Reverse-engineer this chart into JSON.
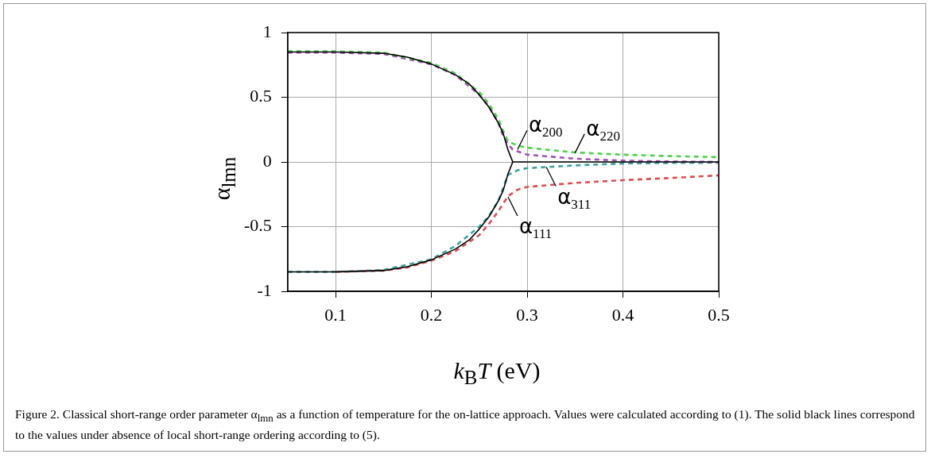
{
  "chart_data": {
    "type": "line",
    "xlabel": "k$_{B}$T (eV)",
    "ylabel": "α$_{lmn}$",
    "xlim": [
      0.05,
      0.5
    ],
    "xticks": [
      0.1,
      0.2,
      0.3,
      0.4,
      0.5
    ],
    "ylim": [
      -1,
      1
    ],
    "yticks": [
      -1,
      -0.5,
      0,
      0.5,
      1
    ],
    "grid": true,
    "legend": false,
    "marker": "none",
    "series": [
      {
        "color": "#000000",
        "line_style": "solid",
        "x": [
          0.05,
          0.1,
          0.15,
          0.175,
          0.2,
          0.225,
          0.24,
          0.25,
          0.26,
          0.27,
          0.275,
          0.28,
          0.285,
          0.3,
          0.4,
          0.5
        ],
        "values": [
          0.85,
          0.85,
          0.84,
          0.81,
          0.757,
          0.674,
          0.6,
          0.519,
          0.425,
          0.3,
          0.22,
          0.093,
          0,
          0,
          0,
          0
        ]
      },
      {
        "color": "#000000",
        "line_style": "solid",
        "x": [
          0.05,
          0.1,
          0.15,
          0.175,
          0.2,
          0.225,
          0.24,
          0.25,
          0.26,
          0.27,
          0.275,
          0.28,
          0.285
        ],
        "values": [
          -0.85,
          -0.85,
          -0.84,
          -0.81,
          -0.757,
          -0.674,
          -0.6,
          -0.519,
          -0.425,
          -0.3,
          -0.22,
          -0.093,
          0
        ]
      },
      {
        "color": "#50d050",
        "line_style": "dashed",
        "x": [
          0.05,
          0.1,
          0.15,
          0.2,
          0.225,
          0.25,
          0.26,
          0.27,
          0.275,
          0.28,
          0.29,
          0.3,
          0.35,
          0.4,
          0.45,
          0.5
        ],
        "values": [
          0.855,
          0.855,
          0.845,
          0.765,
          0.685,
          0.54,
          0.45,
          0.33,
          0.24,
          0.16,
          0.125,
          0.11,
          0.073,
          0.056,
          0.045,
          0.037
        ]
      },
      {
        "color": "#a050b0",
        "line_style": "dashed",
        "x": [
          0.05,
          0.1,
          0.15,
          0.2,
          0.225,
          0.25,
          0.26,
          0.27,
          0.275,
          0.28,
          0.285,
          0.3,
          0.35,
          0.4,
          0.45,
          0.5
        ],
        "values": [
          0.845,
          0.845,
          0.835,
          0.755,
          0.672,
          0.52,
          0.43,
          0.3,
          0.2,
          0.14,
          0.095,
          0.056,
          0.025,
          0.01,
          0.003,
          0
        ]
      },
      {
        "color": "#40a0a0",
        "line_style": "dashed",
        "x": [
          0.05,
          0.1,
          0.15,
          0.2,
          0.225,
          0.25,
          0.26,
          0.27,
          0.275,
          0.28,
          0.29,
          0.3,
          0.35,
          0.4,
          0.45,
          0.5
        ],
        "values": [
          -0.85,
          -0.85,
          -0.835,
          -0.753,
          -0.65,
          -0.5,
          -0.42,
          -0.3,
          -0.2,
          -0.1,
          -0.065,
          -0.048,
          -0.027,
          -0.012,
          -0.008,
          -0.006
        ]
      },
      {
        "color": "#d85050",
        "line_style": "dashed",
        "x": [
          0.1,
          0.15,
          0.175,
          0.2,
          0.225,
          0.25,
          0.26,
          0.27,
          0.28,
          0.29,
          0.3,
          0.35,
          0.4,
          0.45,
          0.5
        ],
        "values": [
          -0.85,
          -0.84,
          -0.815,
          -0.763,
          -0.69,
          -0.566,
          -0.48,
          -0.38,
          -0.265,
          -0.214,
          -0.193,
          -0.162,
          -0.141,
          -0.124,
          -0.104
        ]
      }
    ],
    "annotations": [
      {
        "text": "α$_{200}$",
        "x": 0.29,
        "y": 0.097
      },
      {
        "text": "α$_{220}$",
        "x": 0.35,
        "y": 0.07
      },
      {
        "text": "α$_{311}$",
        "x": 0.32,
        "y": -0.04
      },
      {
        "text": "α$_{111}$",
        "x": 0.28,
        "y": -0.27
      },
      "Figure 2. Classical short-range order parameter α$_{lmn}$ as a function of temperature for the on-lattice approach. Values were calculated according to (1). The solid black lines correspond to the values under absence of local short-range ordering according to (5)."
    ]
  }
}
